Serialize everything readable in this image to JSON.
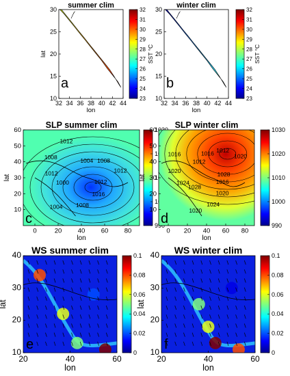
{
  "chart_data": [
    {
      "type": "heatmap",
      "panel": "a",
      "title": "summer clim",
      "xlabel": "lon",
      "ylabel": "lat",
      "xticks": [
        "32",
        "34",
        "36",
        "38",
        "40",
        "42",
        "44"
      ],
      "yticks": [
        "10",
        "15",
        "20",
        "25",
        "30"
      ],
      "xlim": [
        32,
        44
      ],
      "ylim": [
        10,
        30
      ],
      "colorbar_label": "SST °C",
      "colorbar_ticks": [
        "32",
        "31",
        "30",
        "29",
        "28",
        "27",
        "26",
        "25",
        "24",
        "23"
      ],
      "clim": [
        23,
        32
      ],
      "colormap": "jet",
      "field": [
        {
          "lat": 28,
          "lon": 34,
          "value": 27
        },
        {
          "lat": 24,
          "lon": 37,
          "value": 28.5
        },
        {
          "lat": 20,
          "lon": 39,
          "value": 30
        },
        {
          "lat": 16,
          "lon": 41,
          "value": 31
        },
        {
          "lat": 13,
          "lon": 43,
          "value": 31.5
        }
      ]
    },
    {
      "type": "heatmap",
      "panel": "b",
      "title": "winter clim",
      "xlabel": "lon",
      "ylabel": "",
      "xticks": [
        "32",
        "34",
        "36",
        "38",
        "40",
        "42",
        "44"
      ],
      "yticks": [
        "10",
        "15",
        "20",
        "25",
        "30"
      ],
      "xlim": [
        32,
        44
      ],
      "ylim": [
        10,
        30
      ],
      "colorbar_label": "SST °C",
      "colorbar_ticks": [
        "32",
        "31",
        "30",
        "29",
        "28",
        "27",
        "26",
        "25",
        "24",
        "23"
      ],
      "clim": [
        23,
        32
      ],
      "colormap": "jet",
      "field": [
        {
          "lat": 28,
          "lon": 34,
          "value": 23.5
        },
        {
          "lat": 24,
          "lon": 37,
          "value": 24.5
        },
        {
          "lat": 20,
          "lon": 39,
          "value": 26
        },
        {
          "lat": 16,
          "lon": 41,
          "value": 27
        },
        {
          "lat": 13,
          "lon": 43,
          "value": 27.5
        }
      ]
    },
    {
      "type": "heatmap",
      "panel": "c",
      "title": "SLP summer clim",
      "xlabel": "lon",
      "ylabel": "lat",
      "xticks": [
        "0",
        "20",
        "40",
        "60",
        "80"
      ],
      "yticks": [
        "10",
        "20",
        "30",
        "40",
        "50",
        "60"
      ],
      "xlim": [
        -10,
        90
      ],
      "ylim": [
        0,
        60
      ],
      "colorbar_ticks": [
        "1030",
        "1020",
        "1010",
        "1000",
        "990"
      ],
      "clim": [
        990,
        1030
      ],
      "colormap": "jet",
      "contour_labels": [
        "1012",
        "1016",
        "1008",
        "1004",
        "1000",
        "1012",
        "1008",
        "1012",
        "1004",
        "1008",
        "1012"
      ],
      "field": [
        {
          "lat": 55,
          "lon": 10,
          "value": 1013
        },
        {
          "lat": 40,
          "lon": 0,
          "value": 1020
        },
        {
          "lat": 30,
          "lon": 55,
          "value": 1004
        },
        {
          "lat": 27,
          "lon": 70,
          "value": 998
        },
        {
          "lat": 10,
          "lon": 40,
          "value": 1010
        }
      ]
    },
    {
      "type": "heatmap",
      "panel": "d",
      "title": "SLP winter clim",
      "xlabel": "lon",
      "ylabel": "lat",
      "xticks": [
        "0",
        "20",
        "40",
        "60",
        "80"
      ],
      "yticks": [
        "10",
        "20",
        "30",
        "40",
        "50",
        "60"
      ],
      "xlim": [
        -10,
        90
      ],
      "ylim": [
        0,
        60
      ],
      "colorbar_ticks": [
        "1030",
        "1020",
        "1010",
        "1000",
        "990"
      ],
      "clim": [
        990,
        1030
      ],
      "colormap": "jet",
      "contour_labels": [
        "1016",
        "1020",
        "1024",
        "1020",
        "1028",
        "1024",
        "1020",
        "1016",
        "1012",
        "1016",
        "1012",
        "1020",
        "1028"
      ],
      "field": [
        {
          "lat": 48,
          "lon": 85,
          "value": 1030
        },
        {
          "lat": 45,
          "lon": 50,
          "value": 1024
        },
        {
          "lat": 35,
          "lon": 10,
          "value": 1020
        },
        {
          "lat": 20,
          "lon": 40,
          "value": 1014
        },
        {
          "lat": 10,
          "lon": 60,
          "value": 1011
        }
      ]
    },
    {
      "type": "heatmap",
      "panel": "e",
      "title": "WS summer clim",
      "xlabel": "lon",
      "ylabel": "lat",
      "xticks": [
        "20",
        "40",
        "60"
      ],
      "yticks": [
        "10",
        "20",
        "30",
        "40"
      ],
      "xlim": [
        20,
        60
      ],
      "ylim": [
        10,
        40
      ],
      "colorbar_ticks": [
        "0.1",
        "0.08",
        "0.06",
        "0.04",
        "0.02",
        "0"
      ],
      "clim": [
        0,
        0.1
      ],
      "colormap": "jet",
      "field": [
        {
          "lat": 34,
          "lon": 27,
          "value": 0.08
        },
        {
          "lat": 22,
          "lon": 37,
          "value": 0.06
        },
        {
          "lat": 13,
          "lon": 43,
          "value": 0.05
        },
        {
          "lat": 11,
          "lon": 55,
          "value": 0.1
        },
        {
          "lat": 28,
          "lon": 50,
          "value": 0.02
        }
      ]
    },
    {
      "type": "heatmap",
      "panel": "f",
      "title": "WS winter clim",
      "xlabel": "lon",
      "ylabel": "lat",
      "xticks": [
        "20",
        "40",
        "60"
      ],
      "yticks": [
        "10",
        "20",
        "30",
        "40"
      ],
      "xlim": [
        20,
        60
      ],
      "ylim": [
        10,
        40
      ],
      "colorbar_ticks": [
        "0.1",
        "0.08",
        "0.06",
        "0.04",
        "0.02",
        "0"
      ],
      "clim": [
        0,
        0.1
      ],
      "colormap": "jet",
      "field": [
        {
          "lat": 25,
          "lon": 36,
          "value": 0.05
        },
        {
          "lat": 18,
          "lon": 40,
          "value": 0.06
        },
        {
          "lat": 13,
          "lon": 43,
          "value": 0.1
        },
        {
          "lat": 11,
          "lon": 53,
          "value": 0.08
        },
        {
          "lat": 30,
          "lon": 50,
          "value": 0.01
        }
      ]
    }
  ]
}
